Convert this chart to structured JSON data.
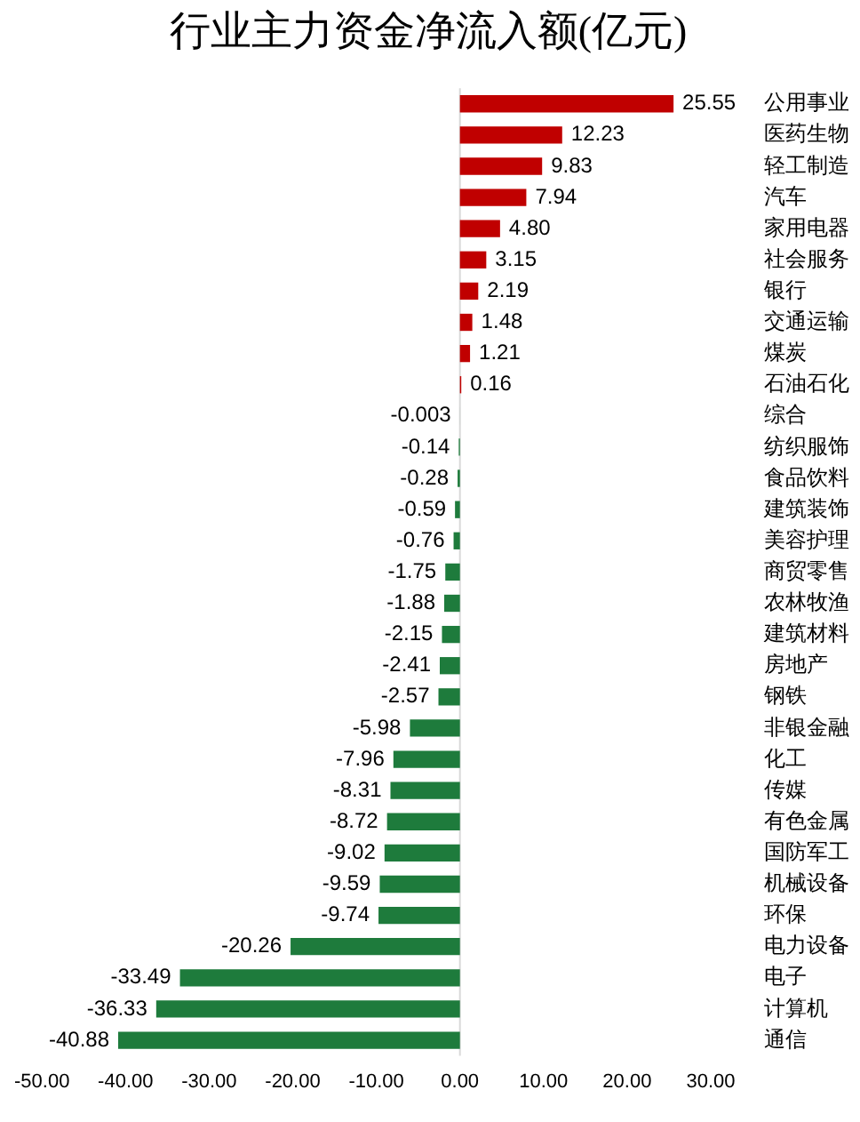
{
  "chart_data": {
    "type": "bar",
    "orientation": "horizontal",
    "title": "行业主力资金净流入额(亿元)",
    "categories": [
      "公用事业",
      "医药生物",
      "轻工制造",
      "汽车",
      "家用电器",
      "社会服务",
      "银行",
      "交通运输",
      "煤炭",
      "石油石化",
      "综合",
      "纺织服饰",
      "食品饮料",
      "建筑装饰",
      "美容护理",
      "商贸零售",
      "农林牧渔",
      "建筑材料",
      "房地产",
      "钢铁",
      "非银金融",
      "化工",
      "传媒",
      "有色金属",
      "国防军工",
      "机械设备",
      "环保",
      "电力设备",
      "电子",
      "计算机",
      "通信"
    ],
    "values": [
      25.55,
      12.23,
      9.83,
      7.94,
      4.8,
      3.15,
      2.19,
      1.48,
      1.21,
      0.16,
      -0.003,
      -0.14,
      -0.28,
      -0.59,
      -0.76,
      -1.75,
      -1.88,
      -2.15,
      -2.41,
      -2.57,
      -5.98,
      -7.96,
      -8.31,
      -8.72,
      -9.02,
      -9.59,
      -9.74,
      -20.26,
      -33.49,
      -36.33,
      -40.88
    ],
    "value_labels": [
      "25.55",
      "12.23",
      "9.83",
      "7.94",
      "4.80",
      "3.15",
      "2.19",
      "1.48",
      "1.21",
      "0.16",
      "-0.003",
      "-0.14",
      "-0.28",
      "-0.59",
      "-0.76",
      "-1.75",
      "-1.88",
      "-2.15",
      "-2.41",
      "-2.57",
      "-5.98",
      "-7.96",
      "-8.31",
      "-8.72",
      "-9.02",
      "-9.59",
      "-9.74",
      "-20.26",
      "-33.49",
      "-36.33",
      "-40.88"
    ],
    "colors": [
      "#c00000",
      "#c00000",
      "#c00000",
      "#c00000",
      "#c00000",
      "#c00000",
      "#c00000",
      "#c00000",
      "#c00000",
      "#c00000",
      "#1e7b3c",
      "#1e7b3c",
      "#1e7b3c",
      "#1e7b3c",
      "#1e7b3c",
      "#1e7b3c",
      "#1e7b3c",
      "#1e7b3c",
      "#1e7b3c",
      "#1e7b3c",
      "#1e7b3c",
      "#1e7b3c",
      "#1e7b3c",
      "#1e7b3c",
      "#1e7b3c",
      "#1e7b3c",
      "#1e7b3c",
      "#1e7b3c",
      "#1e7b3c",
      "#1e7b3c",
      "#1e7b3c"
    ],
    "xlim": [
      -50,
      30
    ],
    "xticks": [
      {
        "value": -50,
        "label": "-50.00"
      },
      {
        "value": -40,
        "label": "-40.00"
      },
      {
        "value": -30,
        "label": "-30.00"
      },
      {
        "value": -20,
        "label": "-20.00"
      },
      {
        "value": -10,
        "label": "-10.00"
      },
      {
        "value": 0,
        "label": "0.00"
      },
      {
        "value": 10,
        "label": "10.00"
      },
      {
        "value": 20,
        "label": "20.00"
      },
      {
        "value": 30,
        "label": "30.00"
      }
    ]
  }
}
